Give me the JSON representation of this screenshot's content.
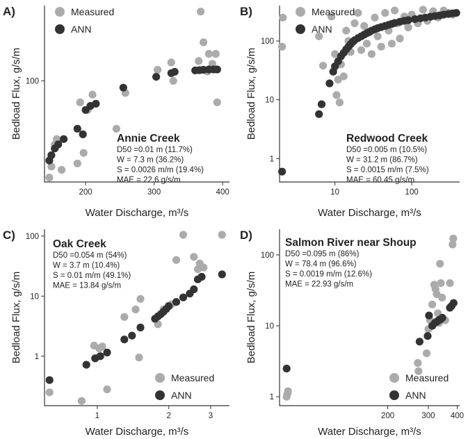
{
  "colors": {
    "measured": "#ababab",
    "ann": "#333333"
  },
  "chart_data": [
    {
      "type": "scatter",
      "panel_label": "A)",
      "site": "Annie Creek",
      "stats": [
        "D50 =0.01 m (11.7%)",
        "W = 7.3 m (36.2%)",
        "S = 0.0026 m/m (19.4%)",
        "MAE = 22.6 g/s/m"
      ],
      "xlabel": "Water Discharge, m³/s",
      "ylabel": "Bedload Flux, g/s/m",
      "xscale": "linear",
      "yscale": "log",
      "xlim": [
        140,
        410
      ],
      "ylim": [
        9,
        600
      ],
      "xticks": [
        200,
        300,
        400
      ],
      "xtick_labels": [
        "200",
        "300",
        "400"
      ],
      "yticks": [
        100
      ],
      "ytick_labels": [
        "100"
      ],
      "legend_position": "top-left",
      "series": [
        {
          "name": "Measured",
          "points": [
            [
              147,
              10
            ],
            [
              150,
              13
            ],
            [
              155,
              22
            ],
            [
              158,
              25
            ],
            [
              165,
              12
            ],
            [
              188,
              14
            ],
            [
              192,
              60
            ],
            [
              197,
              18
            ],
            [
              203,
              50
            ],
            [
              210,
              72
            ],
            [
              245,
              32
            ],
            [
              258,
              75
            ],
            [
              305,
              130
            ],
            [
              325,
              155
            ],
            [
              328,
              100
            ],
            [
              365,
              160
            ],
            [
              368,
              520
            ],
            [
              372,
              250
            ],
            [
              378,
              125
            ],
            [
              380,
              190
            ],
            [
              385,
              150
            ],
            [
              390,
              190
            ],
            [
              392,
              60
            ]
          ]
        },
        {
          "name": "ANN",
          "points": [
            [
              147,
              15
            ],
            [
              150,
              17
            ],
            [
              155,
              20
            ],
            [
              160,
              22
            ],
            [
              168,
              25
            ],
            [
              188,
              32
            ],
            [
              196,
              28
            ],
            [
              200,
              50
            ],
            [
              207,
              55
            ],
            [
              215,
              58
            ],
            [
              255,
              85
            ],
            [
              303,
              110
            ],
            [
              325,
              120
            ],
            [
              330,
              124
            ],
            [
              360,
              128
            ],
            [
              366,
              129
            ],
            [
              372,
              130
            ],
            [
              380,
              131
            ],
            [
              387,
              131
            ],
            [
              392,
              131
            ]
          ]
        }
      ]
    },
    {
      "type": "scatter",
      "panel_label": "B)",
      "site": "Redwood Creek",
      "stats": [
        "D50 =0.005 m (10.5%)",
        "W = 31.2 m (86.7%)",
        "S = 0.0015 m/m (7.5%)",
        "MAE = 60.45 g/s/m"
      ],
      "xlabel": "Water Discharge, m³/s",
      "ylabel": "Bedload Flux, g/s/m",
      "xscale": "log",
      "yscale": "log",
      "xlim": [
        1.9,
        420
      ],
      "ylim": [
        0.4,
        400
      ],
      "xticks": [
        10,
        100
      ],
      "xtick_labels": [
        "10",
        "100"
      ],
      "yticks": [
        1,
        10,
        100
      ],
      "ytick_labels": [
        "1",
        "10",
        "100"
      ],
      "legend_position": "top-left",
      "series": [
        {
          "name": "Measured",
          "points": [
            [
              2.05,
              80
            ],
            [
              2.1,
              250
            ],
            [
              6.2,
              120
            ],
            [
              7.0,
              38
            ],
            [
              9.0,
              260
            ],
            [
              10.0,
              60
            ],
            [
              10.5,
              12
            ],
            [
              11.0,
              22
            ],
            [
              11.5,
              9
            ],
            [
              12.0,
              40
            ],
            [
              13,
              25
            ],
            [
              14,
              150
            ],
            [
              15,
              100
            ],
            [
              16,
              65
            ],
            [
              18,
              200
            ],
            [
              20,
              300
            ],
            [
              22,
              70
            ],
            [
              24,
              180
            ],
            [
              26,
              90
            ],
            [
              28,
              140
            ],
            [
              30,
              60
            ],
            [
              33,
              250
            ],
            [
              36,
              120
            ],
            [
              40,
              80
            ],
            [
              45,
              300
            ],
            [
              50,
              150
            ],
            [
              55,
              90
            ],
            [
              60,
              330
            ],
            [
              65,
              200
            ],
            [
              70,
              110
            ],
            [
              80,
              260
            ],
            [
              90,
              170
            ],
            [
              100,
              280
            ],
            [
              120,
              200
            ],
            [
              140,
              340
            ],
            [
              160,
              220
            ],
            [
              190,
              320
            ],
            [
              220,
              250
            ],
            [
              260,
              330
            ],
            [
              300,
              300
            ],
            [
              340,
              280
            ]
          ]
        },
        {
          "name": "ANN",
          "points": [
            [
              2.05,
              0.6
            ],
            [
              6.2,
              5.7
            ],
            [
              6.7,
              8.4
            ],
            [
              8.5,
              19
            ],
            [
              9.5,
              30
            ],
            [
              10,
              37
            ],
            [
              11,
              45
            ],
            [
              12,
              55
            ],
            [
              13,
              63
            ],
            [
              14,
              72
            ],
            [
              15,
              80
            ],
            [
              16,
              88
            ],
            [
              17,
              96
            ],
            [
              18,
              103
            ],
            [
              20,
              112
            ],
            [
              22,
              120
            ],
            [
              24,
              128
            ],
            [
              26,
              136
            ],
            [
              28,
              143
            ],
            [
              30,
              150
            ],
            [
              33,
              158
            ],
            [
              36,
              165
            ],
            [
              40,
              172
            ],
            [
              45,
              180
            ],
            [
              50,
              188
            ],
            [
              55,
              195
            ],
            [
              60,
              202
            ],
            [
              70,
              212
            ],
            [
              80,
              220
            ],
            [
              90,
              226
            ],
            [
              110,
              235
            ],
            [
              130,
              243
            ],
            [
              150,
              250
            ],
            [
              175,
              258
            ],
            [
              200,
              265
            ],
            [
              230,
              272
            ],
            [
              260,
              280
            ],
            [
              300,
              288
            ],
            [
              340,
              295
            ],
            [
              380,
              300
            ]
          ]
        }
      ]
    },
    {
      "type": "scatter",
      "panel_label": "C)",
      "site": "Oak Creek",
      "stats": [
        "D50 =0.054 m (54%)",
        "W = 3.7 m (10.4%)",
        "S = 0.01 m/m (49.1%)",
        "MAE = 13.84 g/s/m"
      ],
      "xlabel": "Water Discharge, m³/s",
      "ylabel": "Bedload Flux, g/s/m",
      "xscale": "log",
      "yscale": "log",
      "xlim": [
        0.6,
        3.6
      ],
      "ylim": [
        0.15,
        130
      ],
      "xticks": [
        1,
        2,
        3
      ],
      "xtick_labels": [
        "1",
        "2",
        "3"
      ],
      "yticks": [
        1,
        10,
        100
      ],
      "ytick_labels": [
        "1",
        "10",
        "100"
      ],
      "legend_position": "bottom-right",
      "series": [
        {
          "name": "Measured",
          "points": [
            [
              0.63,
              0.25
            ],
            [
              0.86,
              0.18
            ],
            [
              0.97,
              1.5
            ],
            [
              1.02,
              1.35
            ],
            [
              1.05,
              1.45
            ],
            [
              1.1,
              0.28
            ],
            [
              1.3,
              4.5
            ],
            [
              1.45,
              6
            ],
            [
              1.5,
              0.95
            ],
            [
              1.52,
              9
            ],
            [
              1.8,
              3.4
            ],
            [
              1.9,
              6
            ],
            [
              2.0,
              7
            ],
            [
              2.05,
              7.3
            ],
            [
              2.15,
              40
            ],
            [
              2.3,
              105
            ],
            [
              2.55,
              45
            ],
            [
              2.65,
              28
            ],
            [
              2.7,
              35
            ],
            [
              2.8,
              30
            ],
            [
              3.35,
              105
            ]
          ]
        },
        {
          "name": "ANN",
          "points": [
            [
              0.63,
              0.4
            ],
            [
              0.9,
              0.72
            ],
            [
              0.98,
              0.92
            ],
            [
              1.03,
              1.0
            ],
            [
              1.1,
              1.15
            ],
            [
              1.3,
              1.9
            ],
            [
              1.4,
              2.2
            ],
            [
              1.52,
              3.0
            ],
            [
              1.75,
              4.2
            ],
            [
              1.8,
              4.6
            ],
            [
              1.85,
              5.0
            ],
            [
              1.9,
              5.5
            ],
            [
              1.95,
              6.1
            ],
            [
              2.0,
              6.8
            ],
            [
              2.15,
              8.0
            ],
            [
              2.3,
              9.5
            ],
            [
              2.45,
              11
            ],
            [
              2.55,
              13
            ],
            [
              2.65,
              19
            ],
            [
              2.75,
              21
            ],
            [
              3.35,
              23
            ]
          ]
        }
      ]
    },
    {
      "type": "scatter",
      "panel_label": "D)",
      "site": "Salmon River near Shoup",
      "stats": [
        "D50 =0.095 m (86%)",
        "W = 78.4 m (96.6%)",
        "S = 0.0019 m/m (12.6%)",
        "MAE = 22.93 g/s/m"
      ],
      "xlabel": "Water Discharge, m³/s",
      "ylabel": "Bedload Flux, g/s/m",
      "xscale": "log",
      "yscale": "log",
      "xlim": [
        68,
        410
      ],
      "ylim": [
        0.75,
        230
      ],
      "xticks": [
        200,
        300,
        400
      ],
      "xtick_labels": [
        "200",
        "300",
        "400"
      ],
      "yticks": [
        1,
        10,
        100
      ],
      "ytick_labels": [
        "1",
        "10",
        "100"
      ],
      "legend_position": "bottom-right",
      "series": [
        {
          "name": "Measured",
          "points": [
            [
              73,
              1.0
            ],
            [
              73.5,
              1.1
            ],
            [
              74,
              1.2
            ],
            [
              270,
              3.0
            ],
            [
              272,
              2.3
            ],
            [
              295,
              4.1
            ],
            [
              300,
              9
            ],
            [
              305,
              12
            ],
            [
              312,
              20
            ],
            [
              318,
              38
            ],
            [
              322,
              33
            ],
            [
              326,
              28
            ],
            [
              330,
              15
            ],
            [
              334,
              11
            ],
            [
              337,
              75
            ],
            [
              340,
              40
            ],
            [
              344,
              25
            ],
            [
              355,
              12
            ],
            [
              372,
              40
            ],
            [
              382,
              140
            ],
            [
              385,
              170
            ]
          ]
        },
        {
          "name": "ANN",
          "points": [
            [
              73,
              2.5
            ],
            [
              275,
              6
            ],
            [
              298,
              7.2
            ],
            [
              302,
              14
            ],
            [
              312,
              10
            ],
            [
              320,
              11
            ],
            [
              327,
              11.5
            ],
            [
              333,
              12
            ],
            [
              338,
              12.3
            ],
            [
              345,
              13
            ],
            [
              372,
              18
            ],
            [
              378,
              19
            ],
            [
              386,
              21
            ]
          ]
        }
      ]
    }
  ]
}
